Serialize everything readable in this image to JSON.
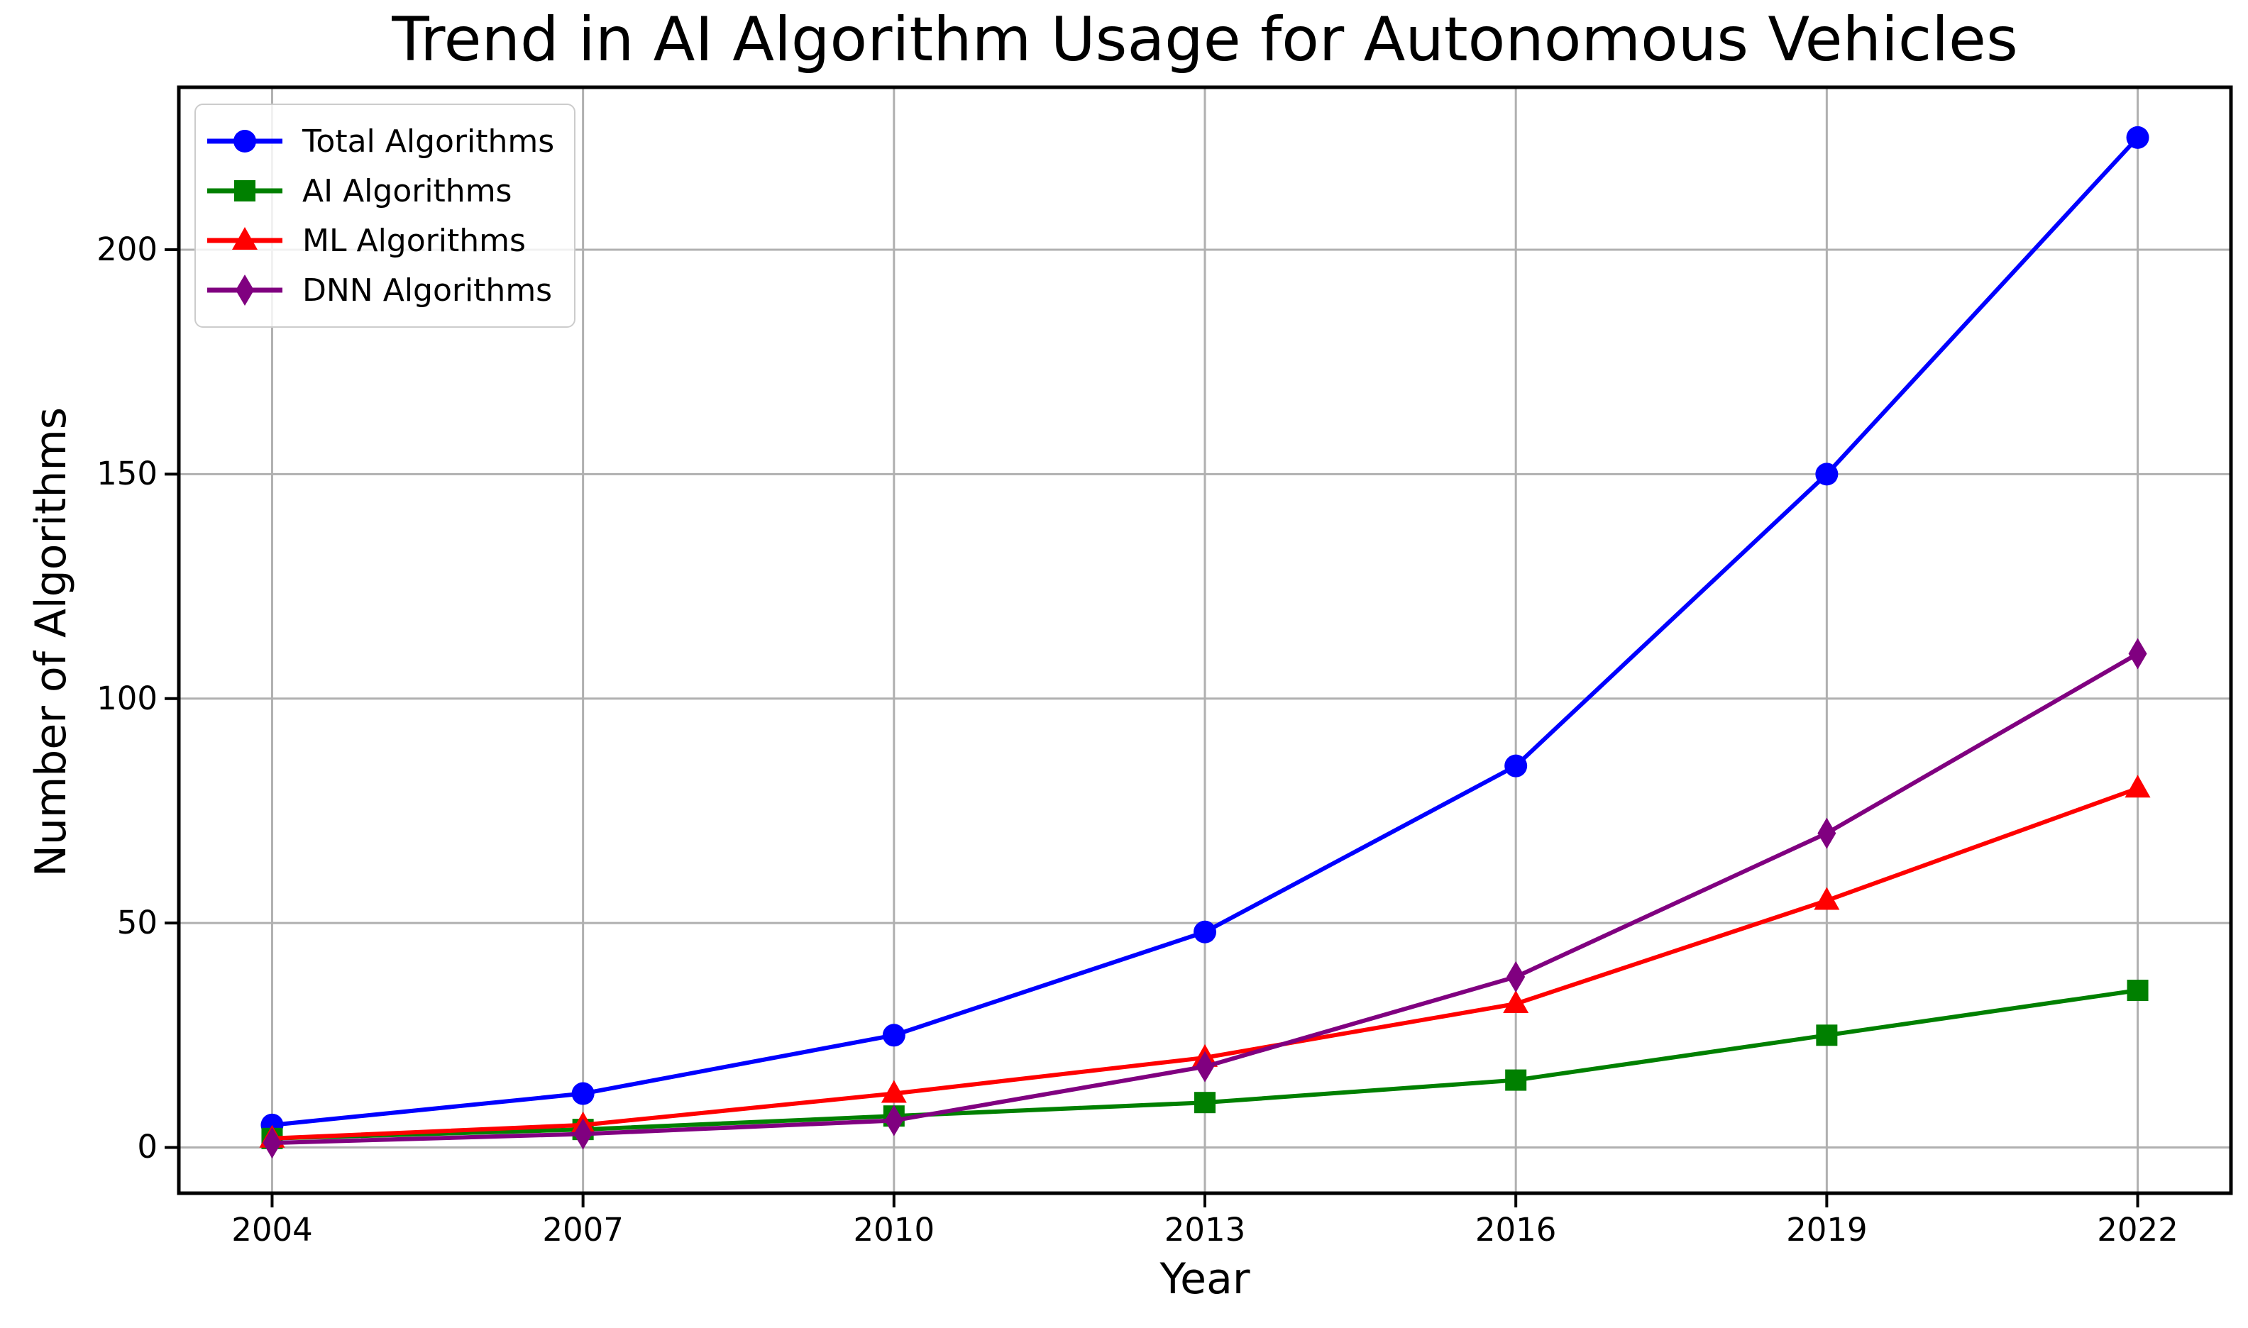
{
  "figure": {
    "title": "Trend in AI Algorithm Usage for Autonomous Vehicles",
    "xlabel": "Year",
    "ylabel": "Number of Algorithms"
  },
  "chart_data": {
    "type": "line",
    "title": "Trend in AI Algorithm Usage for Autonomous Vehicles",
    "xlabel": "Year",
    "ylabel": "Number of Algorithms",
    "x": [
      2004,
      2007,
      2010,
      2013,
      2016,
      2019,
      2022
    ],
    "series": [
      {
        "name": "Total Algorithms",
        "color": "#0000ff",
        "marker": "circle",
        "values": [
          5,
          12,
          25,
          48,
          85,
          150,
          225
        ]
      },
      {
        "name": "AI Algorithms",
        "color": "#008000",
        "marker": "square",
        "values": [
          2,
          4,
          7,
          10,
          15,
          25,
          35
        ]
      },
      {
        "name": "ML Algorithms",
        "color": "#ff0000",
        "marker": "triangle-up",
        "values": [
          2,
          5,
          12,
          20,
          32,
          55,
          80
        ]
      },
      {
        "name": "DNN Algorithms",
        "color": "#800080",
        "marker": "diamond-thin",
        "values": [
          1,
          3,
          6,
          18,
          38,
          70,
          110
        ]
      }
    ],
    "xticks": [
      2004,
      2007,
      2010,
      2013,
      2016,
      2019,
      2022
    ],
    "yticks": [
      0,
      50,
      100,
      150,
      200
    ],
    "xlim": [
      2003.1,
      2022.9
    ],
    "ylim": [
      -10.2,
      236.2
    ],
    "grid": true,
    "grid_color": "#b0b0b0",
    "spine_color": "#000000",
    "legend_position": "upper left"
  }
}
